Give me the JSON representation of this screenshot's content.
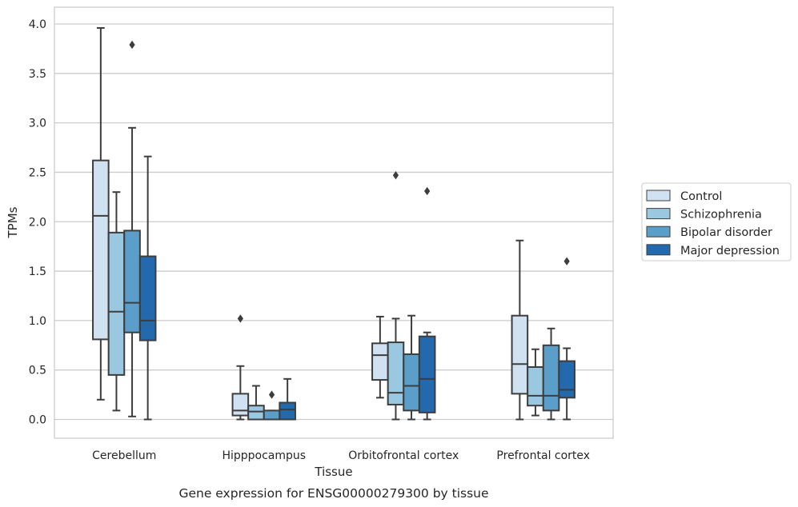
{
  "chart_data": {
    "type": "box",
    "title": "",
    "caption": "Gene expression for ENSG00000279300 by tissue",
    "xlabel": "Tissue",
    "ylabel": "TPMs",
    "ylim": [
      -0.19,
      4.17
    ],
    "yticks": [
      "0.0",
      "0.5",
      "1.0",
      "1.5",
      "2.0",
      "2.5",
      "3.0",
      "3.5",
      "4.0"
    ],
    "grid": "horizontal",
    "legend_position": "right",
    "categories": [
      "Cerebellum",
      "Hipppocampus",
      "Orbitofrontal cortex",
      "Prefrontal cortex"
    ],
    "series": [
      {
        "name": "Control",
        "color": "#d0e1f2",
        "boxes": [
          {
            "whisker_low": 0.2,
            "q1": 0.81,
            "median": 2.06,
            "q3": 2.62,
            "whisker_high": 3.96,
            "outliers": []
          },
          {
            "whisker_low": 0.0,
            "q1": 0.04,
            "median": 0.09,
            "q3": 0.26,
            "whisker_high": 0.54,
            "outliers": [
              1.02
            ]
          },
          {
            "whisker_low": 0.22,
            "q1": 0.4,
            "median": 0.65,
            "q3": 0.77,
            "whisker_high": 1.04,
            "outliers": []
          },
          {
            "whisker_low": 0.0,
            "q1": 0.26,
            "median": 0.56,
            "q3": 1.05,
            "whisker_high": 1.81,
            "outliers": []
          }
        ]
      },
      {
        "name": "Schizophrenia",
        "color": "#9ac8e0",
        "boxes": [
          {
            "whisker_low": 0.09,
            "q1": 0.45,
            "median": 1.09,
            "q3": 1.89,
            "whisker_high": 2.3,
            "outliers": []
          },
          {
            "whisker_low": 0.0,
            "q1": 0.0,
            "median": 0.08,
            "q3": 0.14,
            "whisker_high": 0.34,
            "outliers": []
          },
          {
            "whisker_low": 0.0,
            "q1": 0.15,
            "median": 0.27,
            "q3": 0.78,
            "whisker_high": 1.02,
            "outliers": [
              2.47
            ]
          },
          {
            "whisker_low": 0.04,
            "q1": 0.14,
            "median": 0.24,
            "q3": 0.53,
            "whisker_high": 0.71,
            "outliers": []
          }
        ]
      },
      {
        "name": "Bipolar disorder",
        "color": "#5a9ec9",
        "boxes": [
          {
            "whisker_low": 0.03,
            "q1": 0.88,
            "median": 1.18,
            "q3": 1.91,
            "whisker_high": 2.95,
            "outliers": [
              3.79
            ]
          },
          {
            "whisker_low": 0.0,
            "q1": 0.0,
            "median": 0.0,
            "q3": 0.09,
            "whisker_high": 0.09,
            "outliers": [
              0.25
            ]
          },
          {
            "whisker_low": 0.0,
            "q1": 0.09,
            "median": 0.34,
            "q3": 0.66,
            "whisker_high": 1.05,
            "outliers": []
          },
          {
            "whisker_low": 0.0,
            "q1": 0.09,
            "median": 0.24,
            "q3": 0.75,
            "whisker_high": 0.92,
            "outliers": []
          }
        ]
      },
      {
        "name": "Major depression",
        "color": "#2369ad",
        "boxes": [
          {
            "whisker_low": 0.0,
            "q1": 0.8,
            "median": 1.0,
            "q3": 1.65,
            "whisker_high": 2.66,
            "outliers": []
          },
          {
            "whisker_low": 0.0,
            "q1": 0.0,
            "median": 0.1,
            "q3": 0.17,
            "whisker_high": 0.41,
            "outliers": []
          },
          {
            "whisker_low": 0.0,
            "q1": 0.07,
            "median": 0.41,
            "q3": 0.84,
            "whisker_high": 0.88,
            "outliers": [
              2.31
            ]
          },
          {
            "whisker_low": 0.0,
            "q1": 0.22,
            "median": 0.3,
            "q3": 0.59,
            "whisker_high": 0.72,
            "outliers": [
              1.6
            ]
          }
        ]
      }
    ]
  }
}
